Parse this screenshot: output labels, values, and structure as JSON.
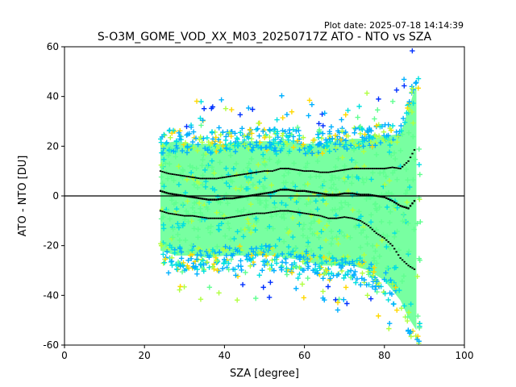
{
  "chart_data": {
    "type": "scatter",
    "title": "S-O3M_GOME_VOD_XX_M03_20250717Z ATO - NTO vs SZA",
    "plot_date": "Plot date: 2025-07-18 14:14:39",
    "xlabel": "SZA [degree]",
    "ylabel": "ATO - NTO [DU]",
    "xlim": [
      0,
      100
    ],
    "ylim": [
      -60,
      60
    ],
    "xticks": [
      0,
      20,
      40,
      60,
      80,
      100
    ],
    "yticks": [
      -60,
      -40,
      -20,
      0,
      20,
      40,
      60
    ],
    "grid": false,
    "reference_line": 0,
    "colors": {
      "density_low": "#0030ff",
      "density_mid_low": "#00b0ff",
      "density_mid": "#00e0e0",
      "density_core": "#60ff90",
      "density_mid_high": "#b0ff40",
      "density_high": "#ffd800",
      "stat_markers": "#000000"
    },
    "envelope": {
      "x": [
        24,
        28,
        32,
        36,
        40,
        44,
        48,
        52,
        56,
        60,
        64,
        68,
        72,
        76,
        80,
        84,
        86,
        88
      ],
      "upper": [
        26,
        27,
        26,
        26,
        26,
        27,
        27,
        27,
        27,
        26,
        26,
        27,
        28,
        28,
        29,
        30,
        40,
        50
      ],
      "lower": [
        -28,
        -30,
        -30,
        -31,
        -30,
        -30,
        -30,
        -30,
        -31,
        -32,
        -34,
        -34,
        -34,
        -36,
        -40,
        -48,
        -55,
        -60
      ]
    },
    "series": [
      {
        "x": [
          24,
          26,
          28,
          30,
          32,
          34,
          36,
          38,
          40,
          42,
          44,
          46,
          48,
          50,
          52,
          54,
          56,
          58,
          60,
          62,
          64,
          66,
          68,
          70,
          72,
          74,
          76,
          78,
          80,
          82,
          84,
          86,
          88
        ],
        "values": [
          2,
          1,
          0.5,
          0,
          -0.5,
          -1,
          -1.5,
          -1.5,
          -1,
          -1,
          -0.5,
          0,
          0.5,
          1,
          1.5,
          2.5,
          2.5,
          2,
          2,
          1.5,
          1,
          0.5,
          0.5,
          1,
          1,
          0.5,
          0.5,
          0,
          -0.5,
          -2,
          -4,
          -5,
          -1
        ]
      },
      {
        "x": [
          24,
          26,
          28,
          30,
          32,
          34,
          36,
          38,
          40,
          42,
          44,
          46,
          48,
          50,
          52,
          54,
          56,
          58,
          60,
          62,
          64,
          66,
          68,
          70,
          72,
          74,
          76,
          78,
          80,
          82,
          84,
          86,
          88
        ],
        "values": [
          10,
          9,
          8.5,
          8,
          7.5,
          7,
          7,
          7,
          7.5,
          8,
          8.5,
          9,
          9.5,
          10,
          10,
          11,
          11,
          10.5,
          10,
          10,
          9.5,
          9.5,
          10,
          10.5,
          11,
          11,
          11,
          11,
          11,
          11.5,
          11,
          14,
          20
        ]
      },
      {
        "x": [
          24,
          26,
          28,
          30,
          32,
          34,
          36,
          38,
          40,
          42,
          44,
          46,
          48,
          50,
          52,
          54,
          56,
          58,
          60,
          62,
          64,
          66,
          68,
          70,
          72,
          74,
          76,
          78,
          80,
          82,
          84,
          86,
          88
        ],
        "values": [
          -6,
          -7,
          -7.5,
          -8,
          -8,
          -8.5,
          -9,
          -9,
          -9,
          -8.5,
          -8,
          -7.5,
          -7,
          -7,
          -6.5,
          -6,
          -6,
          -6.5,
          -7,
          -7.5,
          -8,
          -9,
          -9,
          -8.5,
          -9,
          -10,
          -12,
          -15,
          -17,
          -20,
          -25,
          -28,
          -30
        ]
      }
    ]
  }
}
